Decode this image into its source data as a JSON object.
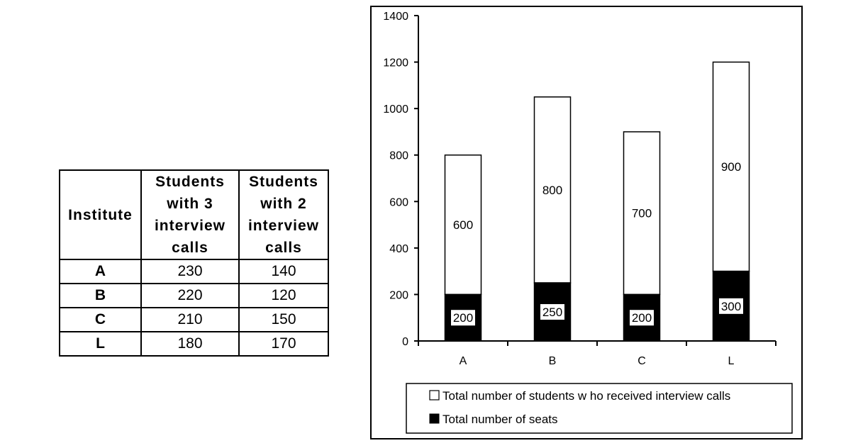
{
  "table": {
    "headers": [
      "Institute",
      "Students with 3 interview calls",
      "Students with 2 interview calls"
    ],
    "rows": [
      {
        "institute": "A",
        "three_calls": "230",
        "two_calls": "140"
      },
      {
        "institute": "B",
        "three_calls": "220",
        "two_calls": "120"
      },
      {
        "institute": "C",
        "three_calls": "210",
        "two_calls": "150"
      },
      {
        "institute": "L",
        "three_calls": "180",
        "two_calls": "170"
      }
    ]
  },
  "chart_data": {
    "type": "bar",
    "stacked": true,
    "categories": [
      "A",
      "B",
      "C",
      "L"
    ],
    "series": [
      {
        "name": "Total number of seats",
        "values": [
          200,
          250,
          200,
          300
        ],
        "color": "#000000"
      },
      {
        "name": "Total number of students w ho received interview calls",
        "values": [
          600,
          800,
          700,
          900
        ],
        "color": "#ffffff"
      }
    ],
    "ylim": [
      0,
      1400
    ],
    "yticks": [
      0,
      200,
      400,
      600,
      800,
      1000,
      1200,
      1400
    ],
    "legend_position": "bottom",
    "grid": false
  }
}
